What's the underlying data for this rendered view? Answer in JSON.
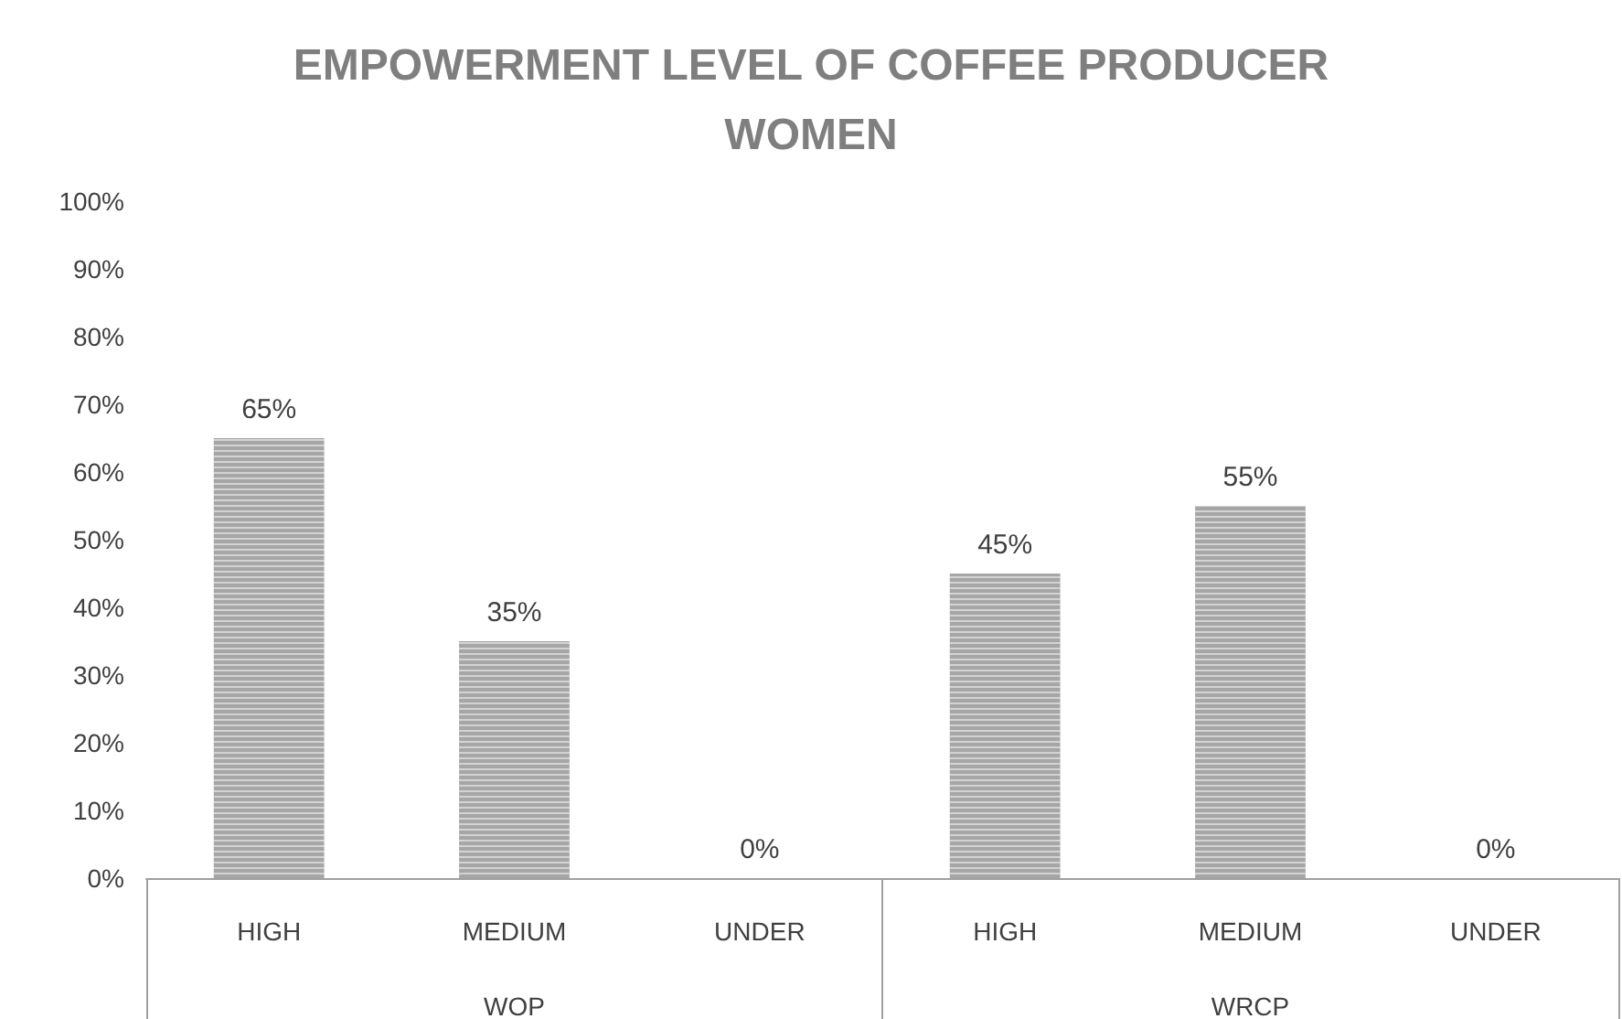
{
  "chart_data": {
    "type": "bar",
    "title": "EMPOWERMENT LEVEL OF COFFEE PRODUCER WOMEN",
    "categories": [
      "HIGH",
      "MEDIUM",
      "UNDER",
      "HIGH",
      "MEDIUM",
      "UNDER"
    ],
    "values": [
      65,
      35,
      0,
      45,
      55,
      0
    ],
    "value_labels": [
      "65%",
      "35%",
      "0%",
      "45%",
      "55%",
      "0%"
    ],
    "color": "#a6a6a6",
    "annotations": [
      "WOP",
      "WRCP"
    ],
    "ylim": [
      0,
      100
    ],
    "yticks": [
      {
        "value": 0,
        "label": "0%"
      },
      {
        "value": 10,
        "label": "10%"
      },
      {
        "value": 20,
        "label": "20%"
      },
      {
        "value": 30,
        "label": "30%"
      },
      {
        "value": 40,
        "label": "40%"
      },
      {
        "value": 50,
        "label": "50%"
      },
      {
        "value": 60,
        "label": "60%"
      },
      {
        "value": 70,
        "label": "70%"
      },
      {
        "value": 80,
        "label": "80%"
      },
      {
        "value": 90,
        "label": "90%"
      },
      {
        "value": 100,
        "label": "100%"
      }
    ],
    "grid": false
  }
}
